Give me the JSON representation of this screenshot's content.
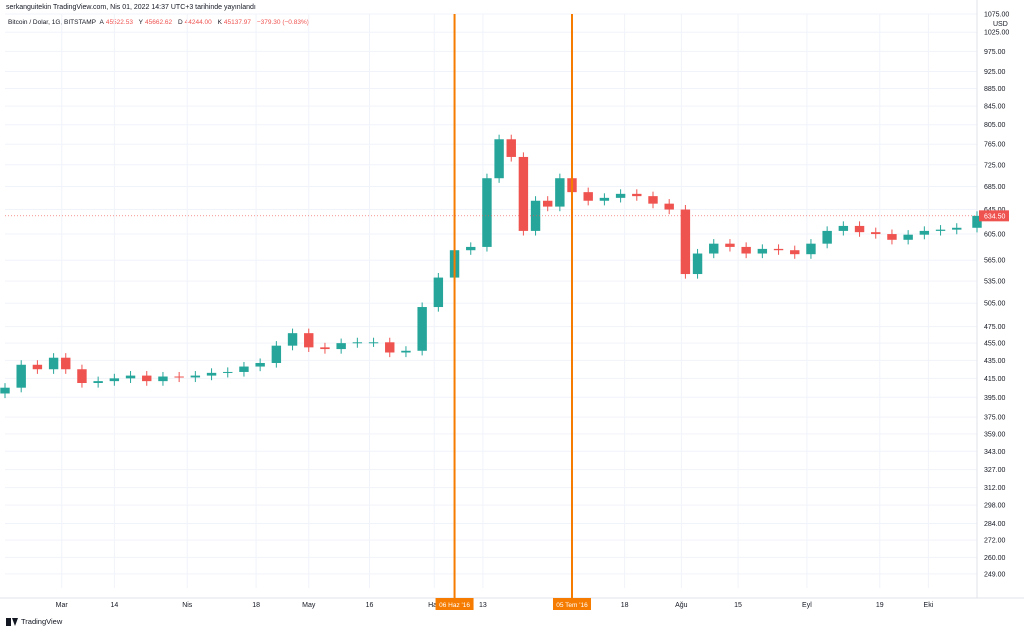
{
  "header": {
    "published_text": "serkanguitekin TradingView.com, Nis 01, 2022 14:37 UTC+3 tarihinde yayınlandı"
  },
  "legend": {
    "symbol": "Bitcoin / Dolar, 1G, BITSTAMP",
    "open_label": "A",
    "open_value": "45522.53",
    "high_label": "Y",
    "high_value": "45662.62",
    "low_label": "D",
    "low_value": "44244.00",
    "close_label": "K",
    "close_value": "45137.97",
    "change": "−379.30 (−0.83%)"
  },
  "footer": {
    "brand": "TradingView",
    "logo_icon": "tradingview-logo-icon"
  },
  "colors": {
    "up": "#26a69a",
    "down": "#ef5350",
    "vline": "#f57c00",
    "grid": "#f0f3fa"
  },
  "chart_data": {
    "type": "candlestick",
    "y_scale": "log",
    "currency_label": "USD",
    "ylim": [
      240,
      1075
    ],
    "y_ticks": [
      "1075.00",
      "1025.00",
      "975.00",
      "925.00",
      "885.00",
      "845.00",
      "805.00",
      "765.00",
      "725.00",
      "685.00",
      "645.00",
      "605.00",
      "565.00",
      "535.00",
      "505.00",
      "475.00",
      "455.00",
      "435.00",
      "415.00",
      "395.00",
      "375.00",
      "359.00",
      "343.00",
      "327.00",
      "312.00",
      "298.00",
      "284.00",
      "272.00",
      "260.00",
      "249.00"
    ],
    "x_ticks": [
      {
        "label": "Mar",
        "date": "2016-03-01"
      },
      {
        "label": "14",
        "date": "2016-03-14"
      },
      {
        "label": "Nis",
        "date": "2016-04-01"
      },
      {
        "label": "18",
        "date": "2016-04-18"
      },
      {
        "label": "May",
        "date": "2016-05-01"
      },
      {
        "label": "16",
        "date": "2016-05-16"
      },
      {
        "label": "Haz",
        "date": "2016-06-01"
      },
      {
        "label": "13",
        "date": "2016-06-13"
      },
      {
        "label": "18",
        "date": "2016-07-18"
      },
      {
        "label": "Ağu",
        "date": "2016-08-01"
      },
      {
        "label": "15",
        "date": "2016-08-15"
      },
      {
        "label": "Eyl",
        "date": "2016-09-01"
      },
      {
        "label": "19",
        "date": "2016-09-19"
      },
      {
        "label": "Eki",
        "date": "2016-10-01"
      }
    ],
    "date_range": [
      "2016-02-16",
      "2016-10-13"
    ],
    "vertical_markers": [
      {
        "date": "2016-06-06",
        "label": "06 Haz '16"
      },
      {
        "date": "2016-07-05",
        "label": "05 Tem '16"
      }
    ],
    "last_price_label": "634.50",
    "last_price": 634.5,
    "series": [
      {
        "date": "2016-02-16",
        "close": 405
      },
      {
        "date": "2016-02-20",
        "close": 430
      },
      {
        "date": "2016-02-24",
        "close": 425
      },
      {
        "date": "2016-02-28",
        "close": 438
      },
      {
        "date": "2016-03-02",
        "close": 425
      },
      {
        "date": "2016-03-06",
        "close": 410
      },
      {
        "date": "2016-03-10",
        "close": 412
      },
      {
        "date": "2016-03-14",
        "close": 415
      },
      {
        "date": "2016-03-18",
        "close": 418
      },
      {
        "date": "2016-03-22",
        "close": 412
      },
      {
        "date": "2016-03-26",
        "close": 417
      },
      {
        "date": "2016-03-30",
        "close": 416
      },
      {
        "date": "2016-04-03",
        "close": 418
      },
      {
        "date": "2016-04-07",
        "close": 421
      },
      {
        "date": "2016-04-11",
        "close": 422
      },
      {
        "date": "2016-04-15",
        "close": 428
      },
      {
        "date": "2016-04-19",
        "close": 432
      },
      {
        "date": "2016-04-23",
        "close": 452
      },
      {
        "date": "2016-04-27",
        "close": 467
      },
      {
        "date": "2016-05-01",
        "close": 450
      },
      {
        "date": "2016-05-05",
        "close": 448
      },
      {
        "date": "2016-05-09",
        "close": 455
      },
      {
        "date": "2016-05-13",
        "close": 456
      },
      {
        "date": "2016-05-17",
        "close": 456
      },
      {
        "date": "2016-05-21",
        "close": 444
      },
      {
        "date": "2016-05-25",
        "close": 446
      },
      {
        "date": "2016-05-29",
        "close": 500
      },
      {
        "date": "2016-06-02",
        "close": 540
      },
      {
        "date": "2016-06-06",
        "close": 580
      },
      {
        "date": "2016-06-10",
        "close": 585
      },
      {
        "date": "2016-06-14",
        "close": 700
      },
      {
        "date": "2016-06-17",
        "close": 775
      },
      {
        "date": "2016-06-20",
        "close": 740
      },
      {
        "date": "2016-06-23",
        "close": 610
      },
      {
        "date": "2016-06-26",
        "close": 660
      },
      {
        "date": "2016-06-29",
        "close": 650
      },
      {
        "date": "2016-07-02",
        "close": 700
      },
      {
        "date": "2016-07-05",
        "close": 675
      },
      {
        "date": "2016-07-09",
        "close": 660
      },
      {
        "date": "2016-07-13",
        "close": 665
      },
      {
        "date": "2016-07-17",
        "close": 672
      },
      {
        "date": "2016-07-21",
        "close": 668
      },
      {
        "date": "2016-07-25",
        "close": 655
      },
      {
        "date": "2016-07-29",
        "close": 645
      },
      {
        "date": "2016-08-02",
        "close": 545
      },
      {
        "date": "2016-08-05",
        "close": 575
      },
      {
        "date": "2016-08-09",
        "close": 590
      },
      {
        "date": "2016-08-13",
        "close": 585
      },
      {
        "date": "2016-08-17",
        "close": 575
      },
      {
        "date": "2016-08-21",
        "close": 582
      },
      {
        "date": "2016-08-25",
        "close": 580
      },
      {
        "date": "2016-08-29",
        "close": 574
      },
      {
        "date": "2016-09-02",
        "close": 590
      },
      {
        "date": "2016-09-06",
        "close": 610
      },
      {
        "date": "2016-09-10",
        "close": 618
      },
      {
        "date": "2016-09-14",
        "close": 608
      },
      {
        "date": "2016-09-18",
        "close": 605
      },
      {
        "date": "2016-09-22",
        "close": 596
      },
      {
        "date": "2016-09-26",
        "close": 604
      },
      {
        "date": "2016-09-30",
        "close": 610
      },
      {
        "date": "2016-10-04",
        "close": 612
      },
      {
        "date": "2016-10-08",
        "close": 615
      },
      {
        "date": "2016-10-13",
        "close": 634.5
      }
    ]
  }
}
